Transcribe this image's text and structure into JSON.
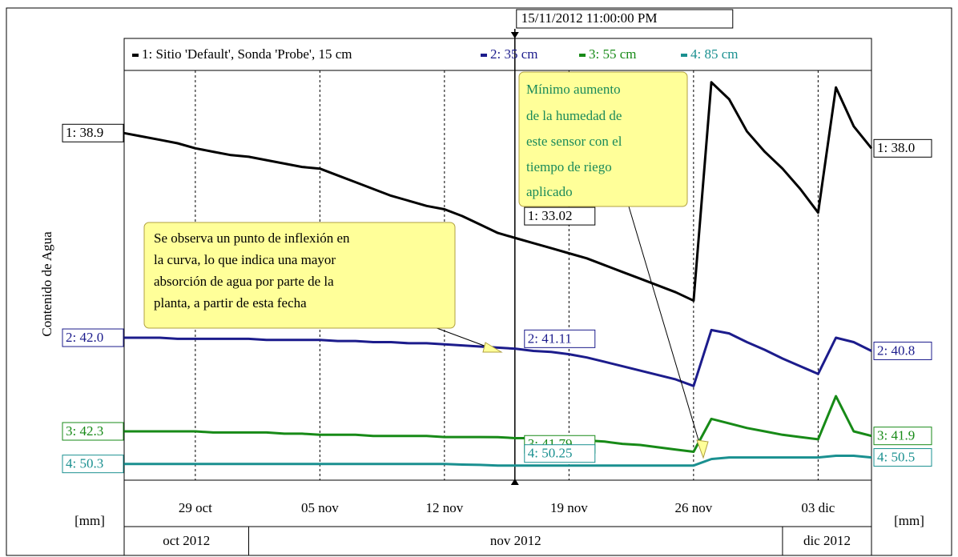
{
  "chart_data": {
    "type": "line",
    "y_label": "Contenido de Agua",
    "unit_left": "[mm]",
    "unit_right": "[mm]",
    "cursor": {
      "value": "2012-11-15T23:00",
      "label": "15/11/2012 11:00:00 PM"
    },
    "xlim": [
      "2012-10-25",
      "2012-12-06"
    ],
    "xticks": [
      {
        "value": "2012-10-29",
        "label": "29 oct"
      },
      {
        "value": "2012-11-05",
        "label": "05 nov"
      },
      {
        "value": "2012-11-12",
        "label": "12 nov"
      },
      {
        "value": "2012-11-19",
        "label": "19 nov"
      },
      {
        "value": "2012-11-26",
        "label": "26 nov"
      },
      {
        "value": "2012-12-03",
        "label": "03 dic"
      }
    ],
    "months": [
      {
        "value": "2012-10",
        "label": "oct 2012"
      },
      {
        "value": "2012-11",
        "label": "nov 2012"
      },
      {
        "value": "2012-12",
        "label": "dic 2012"
      }
    ],
    "grid": true,
    "x": [
      "2012-10-25",
      "2012-10-26",
      "2012-10-27",
      "2012-10-28",
      "2012-10-29",
      "2012-10-30",
      "2012-10-31",
      "2012-11-01",
      "2012-11-02",
      "2012-11-03",
      "2012-11-04",
      "2012-11-05",
      "2012-11-06",
      "2012-11-07",
      "2012-11-08",
      "2012-11-09",
      "2012-11-10",
      "2012-11-11",
      "2012-11-12",
      "2012-11-13",
      "2012-11-14",
      "2012-11-15",
      "2012-11-16",
      "2012-11-17",
      "2012-11-18",
      "2012-11-19",
      "2012-11-20",
      "2012-11-21",
      "2012-11-22",
      "2012-11-23",
      "2012-11-24",
      "2012-11-25",
      "2012-11-26",
      "2012-11-27",
      "2012-11-28",
      "2012-11-29",
      "2012-11-30",
      "2012-12-01",
      "2012-12-02",
      "2012-12-03",
      "2012-12-04",
      "2012-12-05",
      "2012-12-06"
    ],
    "series": [
      {
        "name": "1: Sitio  'Default', Sonda 'Probe', 15 cm",
        "color": "#000000",
        "ylim": [
          18.4,
          42.6
        ],
        "start_label": "1: 38.9",
        "cursor_label": "1: 33.02",
        "end_label": "1: 38.0",
        "values": [
          38.9,
          38.7,
          38.5,
          38.3,
          38.0,
          37.8,
          37.6,
          37.5,
          37.3,
          37.1,
          36.9,
          36.8,
          36.4,
          36.0,
          35.6,
          35.2,
          34.9,
          34.6,
          34.4,
          34.0,
          33.5,
          33.0,
          32.7,
          32.4,
          32.1,
          31.8,
          31.5,
          31.1,
          30.7,
          30.3,
          29.9,
          29.5,
          29.0,
          41.9,
          40.9,
          39.0,
          37.8,
          36.8,
          35.6,
          34.2,
          41.6,
          39.3,
          38.0
        ]
      },
      {
        "name": "2: 35 cm",
        "color": "#1c1c8c",
        "ylim": [
          29.0,
          66.4
        ],
        "start_label": "2: 42.0",
        "cursor_label": "2: 41.11",
        "end_label": "2: 40.8",
        "values": [
          42.0,
          42.0,
          42.0,
          41.9,
          41.9,
          41.9,
          41.9,
          41.9,
          41.8,
          41.8,
          41.8,
          41.8,
          41.7,
          41.7,
          41.6,
          41.6,
          41.5,
          41.5,
          41.4,
          41.3,
          41.2,
          41.1,
          41.0,
          40.8,
          40.7,
          40.5,
          40.2,
          39.8,
          39.4,
          39.0,
          38.6,
          38.2,
          37.6,
          42.7,
          42.4,
          41.6,
          40.9,
          40.1,
          39.4,
          38.7,
          42.0,
          41.6,
          40.8
        ]
      },
      {
        "name": "3: 55 cm",
        "color": "#178a17",
        "ylim": [
          38.0,
          74.1
        ],
        "start_label": "3: 42.3",
        "cursor_label": "3: 41.79",
        "end_label": "3: 41.9",
        "values": [
          42.3,
          42.3,
          42.3,
          42.3,
          42.3,
          42.2,
          42.2,
          42.2,
          42.2,
          42.1,
          42.1,
          42.0,
          42.0,
          42.0,
          41.9,
          41.9,
          41.9,
          41.9,
          41.8,
          41.8,
          41.8,
          41.79,
          41.7,
          41.7,
          41.6,
          41.6,
          41.5,
          41.4,
          41.2,
          41.1,
          40.9,
          40.7,
          40.5,
          43.4,
          43.0,
          42.6,
          42.3,
          42.0,
          41.8,
          41.6,
          45.4,
          42.3,
          41.9
        ]
      },
      {
        "name": "4: 85 cm",
        "color": "#1a9090",
        "ylim": [
          49.8,
          62.4
        ],
        "start_label": "4: 50.3",
        "cursor_label": "4: 50.25",
        "end_label": "4: 50.5",
        "values": [
          50.3,
          50.3,
          50.3,
          50.3,
          50.3,
          50.3,
          50.3,
          50.3,
          50.3,
          50.3,
          50.3,
          50.3,
          50.3,
          50.3,
          50.3,
          50.3,
          50.3,
          50.3,
          50.3,
          50.28,
          50.27,
          50.25,
          50.25,
          50.25,
          50.25,
          50.25,
          50.25,
          50.25,
          50.25,
          50.25,
          50.25,
          50.25,
          50.25,
          50.45,
          50.5,
          50.5,
          50.5,
          50.5,
          50.5,
          50.5,
          50.55,
          50.55,
          50.5
        ]
      }
    ],
    "annotations": [
      {
        "lines": [
          "Se observa un punto de inflexión en",
          "la curva, lo que indica una mayor",
          "absorción de agua por parte de la",
          "planta, a partir de esta fecha"
        ]
      },
      {
        "lines": [
          "Mínimo aumento",
          "de la humedad de",
          "este sensor con el",
          "tiempo de riego",
          "aplicado"
        ]
      }
    ]
  }
}
